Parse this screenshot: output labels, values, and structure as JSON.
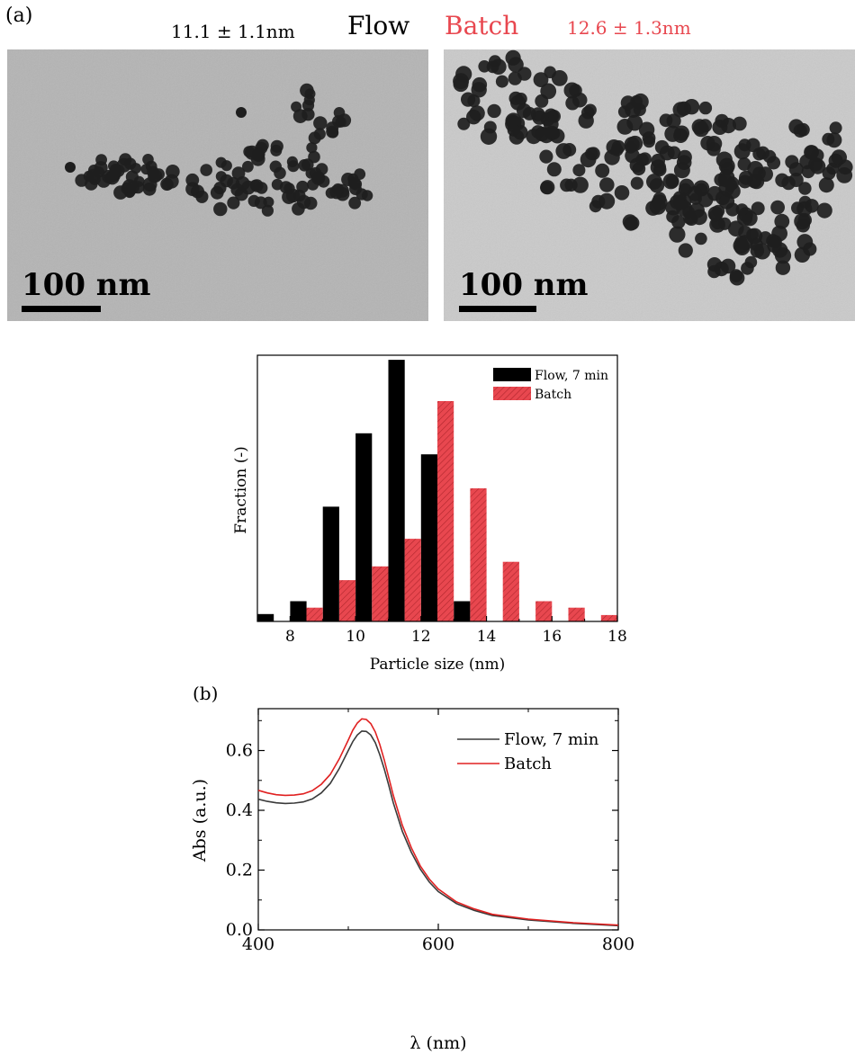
{
  "figure": {
    "panel_a_label": "(a)",
    "panel_b_label": "(b)",
    "flow_size": "11.1 ± 1.1nm",
    "flow_label": "Flow",
    "batch_label": "Batch",
    "batch_size": "12.6 ± 1.3nm",
    "scale_bar_left": "100 nm",
    "scale_bar_right": "100 nm"
  },
  "colors": {
    "flow": "#000000",
    "batch": "#e8474f",
    "batch_header": "#e8474f",
    "uv_flow": "#3a3a3a",
    "uv_batch": "#e02020",
    "tem_background": "#b2b2b2",
    "particle": "#1e1e1e"
  },
  "chart_data": [
    {
      "type": "bar",
      "title": "",
      "xlabel": "Particle size (nm)",
      "ylabel": "Fraction (-)",
      "xlim": [
        7,
        18
      ],
      "xticks": [
        8,
        10,
        12,
        14,
        16,
        18
      ],
      "ylim": [
        0,
        0.29
      ],
      "ytick_labels_shown": false,
      "legend_position": "top-right",
      "series": [
        {
          "name": "Flow, 7 min",
          "x": [
            7.25,
            8.25,
            9.25,
            10.25,
            11.25,
            12.25,
            13.25
          ],
          "values": [
            0.008,
            0.022,
            0.125,
            0.205,
            0.285,
            0.182,
            0.022
          ]
        },
        {
          "name": "Batch",
          "x": [
            8.75,
            9.75,
            10.75,
            11.75,
            12.75,
            13.75,
            14.75,
            15.75,
            16.75,
            17.75
          ],
          "values": [
            0.015,
            0.045,
            0.06,
            0.09,
            0.24,
            0.145,
            0.065,
            0.022,
            0.015,
            0.007
          ]
        }
      ]
    },
    {
      "type": "line",
      "title": "",
      "xlabel": "λ (nm)",
      "ylabel": "Abs (a.u.)",
      "xlim": [
        400,
        800
      ],
      "ylim": [
        0.0,
        0.74
      ],
      "xticks": [
        400,
        600,
        800
      ],
      "yticks": [
        "0.0",
        "0.2",
        "0.4",
        "0.6"
      ],
      "legend_position": "top-right",
      "series": [
        {
          "name": "Flow, 7 min",
          "x": [
            400,
            410,
            420,
            430,
            440,
            450,
            460,
            470,
            480,
            490,
            500,
            505,
            510,
            515,
            520,
            525,
            530,
            535,
            540,
            545,
            550,
            560,
            570,
            580,
            590,
            600,
            620,
            640,
            660,
            700,
            750,
            800
          ],
          "y": [
            0.437,
            0.43,
            0.425,
            0.423,
            0.424,
            0.428,
            0.438,
            0.458,
            0.49,
            0.54,
            0.6,
            0.63,
            0.652,
            0.665,
            0.664,
            0.652,
            0.626,
            0.586,
            0.538,
            0.483,
            0.425,
            0.33,
            0.26,
            0.203,
            0.16,
            0.128,
            0.088,
            0.065,
            0.048,
            0.033,
            0.022,
            0.014
          ]
        },
        {
          "name": "Batch",
          "x": [
            400,
            410,
            420,
            430,
            440,
            450,
            460,
            470,
            480,
            490,
            500,
            505,
            510,
            515,
            520,
            525,
            530,
            535,
            540,
            545,
            550,
            560,
            570,
            580,
            590,
            600,
            620,
            640,
            660,
            700,
            750,
            800
          ],
          "y": [
            0.467,
            0.458,
            0.452,
            0.45,
            0.451,
            0.455,
            0.466,
            0.487,
            0.52,
            0.572,
            0.635,
            0.668,
            0.692,
            0.706,
            0.704,
            0.69,
            0.662,
            0.62,
            0.568,
            0.509,
            0.45,
            0.35,
            0.275,
            0.214,
            0.17,
            0.137,
            0.094,
            0.07,
            0.052,
            0.036,
            0.024,
            0.016
          ]
        }
      ]
    }
  ]
}
